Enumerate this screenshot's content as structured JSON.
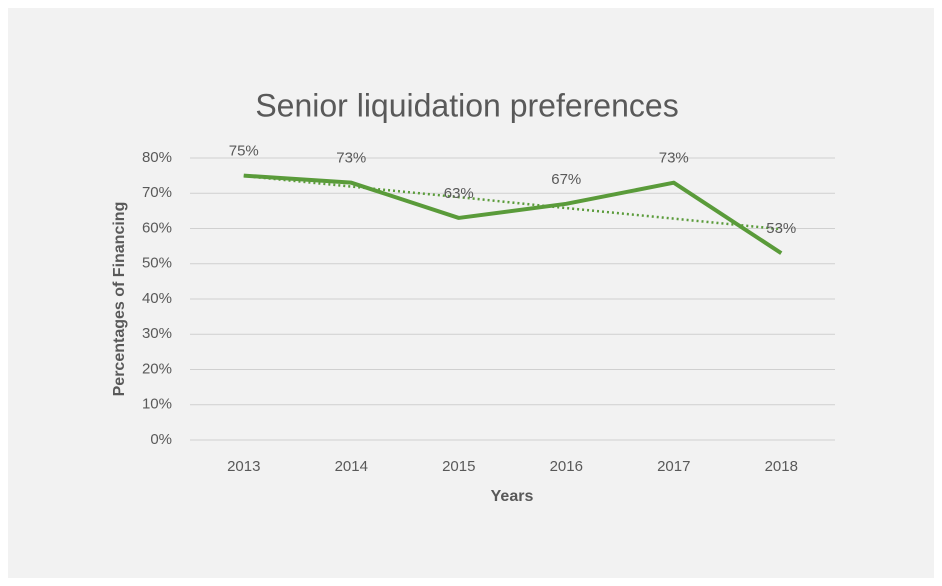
{
  "chart_data": {
    "type": "line",
    "title": "Senior liquidation preferences",
    "x_label": "Years",
    "y_label": "Percentages of Financing",
    "categories": [
      "2013",
      "2014",
      "2015",
      "2016",
      "2017",
      "2018"
    ],
    "series": [
      {
        "color": "#5a9b3a",
        "values": [
          75,
          73,
          63,
          67,
          73,
          53
        ],
        "value_labels": [
          "75%",
          "73%",
          "63%",
          "67%",
          "73%",
          "53%"
        ]
      }
    ],
    "trendline": {
      "color": "#5a9b3a",
      "values": [
        74.9,
        71.9,
        68.9,
        65.8,
        62.8,
        59.8
      ]
    },
    "ylim": [
      0,
      80
    ],
    "yticks": [
      {
        "value": 0,
        "label": "0%"
      },
      {
        "value": 10,
        "label": "10%"
      },
      {
        "value": 20,
        "label": "20%"
      },
      {
        "value": 30,
        "label": "30%"
      },
      {
        "value": 40,
        "label": "40%"
      },
      {
        "value": 50,
        "label": "50%"
      },
      {
        "value": 60,
        "label": "60%"
      },
      {
        "value": 70,
        "label": "70%"
      },
      {
        "value": 80,
        "label": "80%"
      }
    ],
    "grid": true
  }
}
